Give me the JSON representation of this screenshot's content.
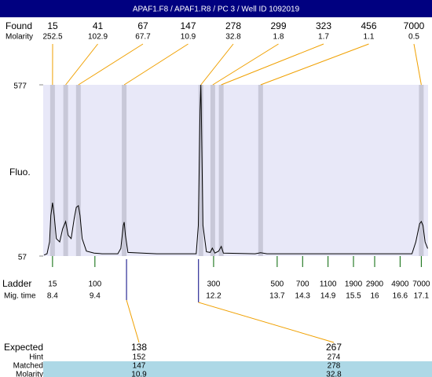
{
  "header": {
    "title": "APAF1.F8 / APAF1.R8 / PC 3 / Well ID 1092019"
  },
  "chart_data": {
    "type": "electropherogram",
    "ylabel": "Fluo.",
    "ylim": [
      57,
      577
    ],
    "yticks": [
      57,
      577
    ],
    "xlim": [
      8.18,
      17.26
    ],
    "color": "#000000",
    "x": [
      8.2,
      8.27,
      8.33,
      8.36,
      8.4,
      8.44,
      8.49,
      8.57,
      8.64,
      8.71,
      8.77,
      8.84,
      8.91,
      8.96,
      9.01,
      9.05,
      9.1,
      9.2,
      9.38,
      9.57,
      9.94,
      10.01,
      10.07,
      10.09,
      10.12,
      10.18,
      10.86,
      11.79,
      11.84,
      11.88,
      11.9,
      11.91,
      11.95,
      12.03,
      12.12,
      12.17,
      12.23,
      12.32,
      12.38,
      12.43,
      13.18,
      13.31,
      13.46,
      16.88,
      16.97,
      17.06,
      17.1,
      17.14,
      17.19,
      17.25
    ],
    "values": [
      60,
      64,
      100,
      180,
      219,
      180,
      110,
      100,
      140,
      162,
      120,
      110,
      170,
      205,
      210,
      180,
      110,
      72,
      66,
      64,
      64,
      80,
      150,
      160,
      120,
      68,
      64,
      64,
      150,
      500,
      577,
      500,
      150,
      70,
      68,
      81,
      66,
      72,
      86,
      66,
      64,
      67,
      64,
      64,
      100,
      155,
      162,
      150,
      100,
      80
    ],
    "found": {
      "label": "Found",
      "molarity_label": "Molarity",
      "sizes": [
        15,
        41,
        67,
        147,
        278,
        299,
        323,
        456,
        7000
      ],
      "molarity": [
        252.5,
        102.9,
        67.7,
        10.9,
        32.8,
        1.8,
        1.7,
        1.1,
        0.5
      ],
      "times": [
        8.4,
        8.71,
        9.01,
        10.09,
        11.9,
        12.18,
        12.38,
        13.31,
        17.1
      ]
    },
    "ladder": {
      "label": "Ladder",
      "time_label": "Mig. time",
      "sizes": [
        15,
        100,
        300,
        500,
        700,
        1100,
        1900,
        2900,
        4900,
        7000
      ],
      "times": [
        8.4,
        9.4,
        12.2,
        13.7,
        14.3,
        14.9,
        15.5,
        16,
        16.6,
        17.1
      ]
    },
    "expected": {
      "labels": [
        "Expected",
        "Hint",
        "Matched",
        "Molarity"
      ],
      "expected": [
        138,
        267
      ],
      "hint": [
        152,
        274
      ],
      "matched": [
        147,
        278
      ],
      "molarity": [
        10.9,
        32.8
      ]
    }
  }
}
